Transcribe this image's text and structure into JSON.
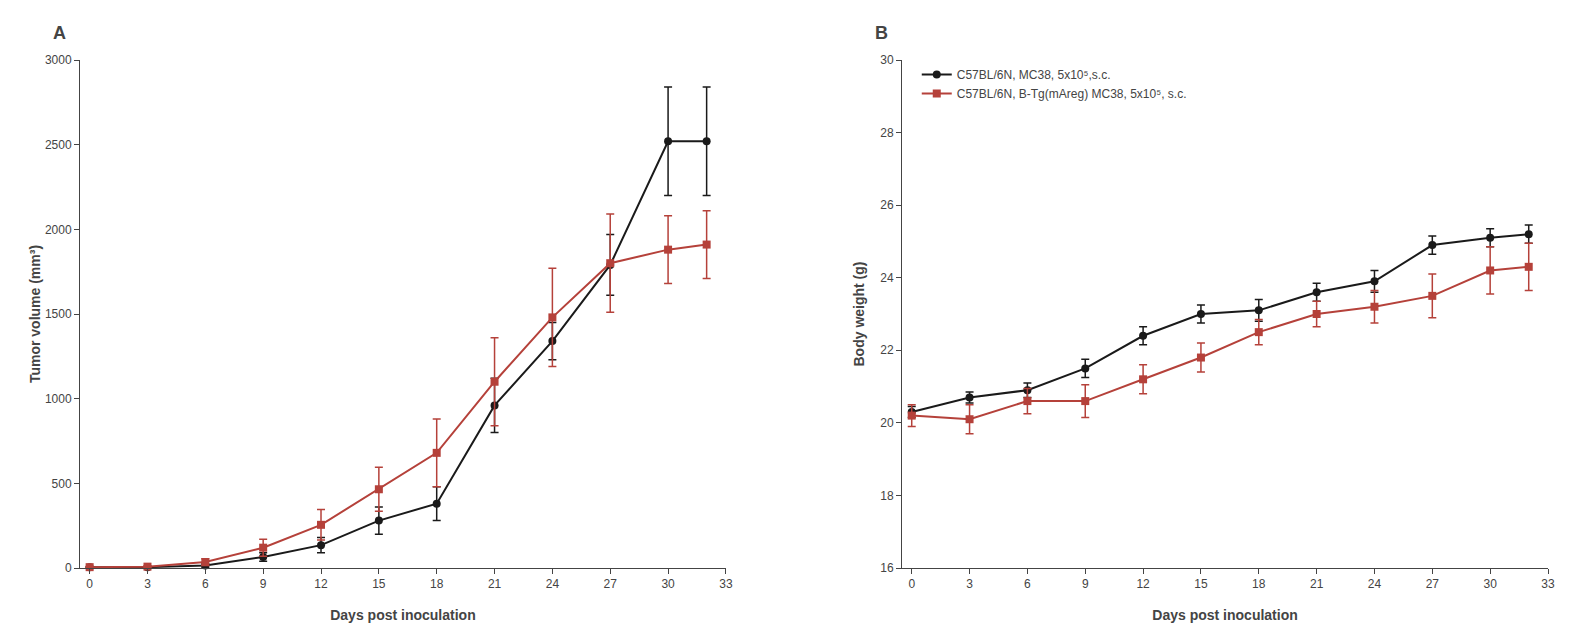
{
  "chart_data": [
    {
      "type": "line",
      "title": "A",
      "x_label": "Days post inoculation",
      "y_label": "Tumor volume (mm³)",
      "xlim": [
        -0.5,
        33
      ],
      "ylim": [
        0,
        3000
      ],
      "xticks": [
        0,
        3,
        6,
        9,
        12,
        15,
        18,
        21,
        24,
        27,
        30,
        33
      ],
      "yticks": [
        0,
        500,
        1000,
        1500,
        2000,
        2500,
        3000
      ],
      "grid": false,
      "series": [
        {
          "color": "#1a1a1a",
          "marker": "circle",
          "x": [
            0,
            3,
            6,
            9,
            12,
            15,
            18,
            21,
            24,
            27,
            30,
            32
          ],
          "values": [
            5,
            5,
            15,
            65,
            135,
            280,
            380,
            960,
            1340,
            1790,
            2520,
            2520
          ],
          "errors": [
            3,
            3,
            10,
            25,
            45,
            80,
            100,
            160,
            110,
            180,
            320,
            320
          ]
        },
        {
          "color": "#b5413a",
          "marker": "square",
          "x": [
            0,
            3,
            6,
            9,
            12,
            15,
            18,
            21,
            24,
            27,
            30,
            32
          ],
          "values": [
            5,
            8,
            35,
            120,
            255,
            465,
            680,
            1100,
            1480,
            1800,
            1880,
            1910
          ],
          "errors": [
            3,
            5,
            20,
            50,
            90,
            130,
            200,
            260,
            290,
            290,
            200,
            200
          ]
        }
      ]
    },
    {
      "type": "line",
      "title": "B",
      "x_label": "Days post inoculation",
      "y_label": "Body weight (g)",
      "xlim": [
        -0.5,
        33
      ],
      "ylim": [
        16,
        30
      ],
      "xticks": [
        0,
        3,
        6,
        9,
        12,
        15,
        18,
        21,
        24,
        27,
        30,
        33
      ],
      "yticks": [
        16,
        18,
        20,
        22,
        24,
        26,
        28,
        30
      ],
      "grid": false,
      "legend": "upper left",
      "series": [
        {
          "name": "C57BL/6N, MC38, 5x10⁵,s.c.",
          "color": "#1a1a1a",
          "marker": "circle",
          "x": [
            0,
            3,
            6,
            9,
            12,
            15,
            18,
            21,
            24,
            27,
            30,
            32
          ],
          "values": [
            20.3,
            20.7,
            20.9,
            21.5,
            22.4,
            23.0,
            23.1,
            23.6,
            23.9,
            24.9,
            25.1,
            25.2
          ],
          "errors": [
            0.15,
            0.15,
            0.2,
            0.25,
            0.25,
            0.25,
            0.3,
            0.25,
            0.3,
            0.25,
            0.25,
            0.25
          ]
        },
        {
          "name": "C57BL/6N, B-Tg(mAreg) MC38, 5x10⁵, s.c.",
          "color": "#b5413a",
          "marker": "square",
          "x": [
            0,
            3,
            6,
            9,
            12,
            15,
            18,
            21,
            24,
            27,
            30,
            32
          ],
          "values": [
            20.2,
            20.1,
            20.6,
            20.6,
            21.2,
            21.8,
            22.5,
            23.0,
            23.2,
            23.5,
            24.2,
            24.3
          ],
          "errors": [
            0.3,
            0.4,
            0.35,
            0.45,
            0.4,
            0.4,
            0.35,
            0.35,
            0.45,
            0.6,
            0.65,
            0.65
          ]
        }
      ]
    }
  ]
}
